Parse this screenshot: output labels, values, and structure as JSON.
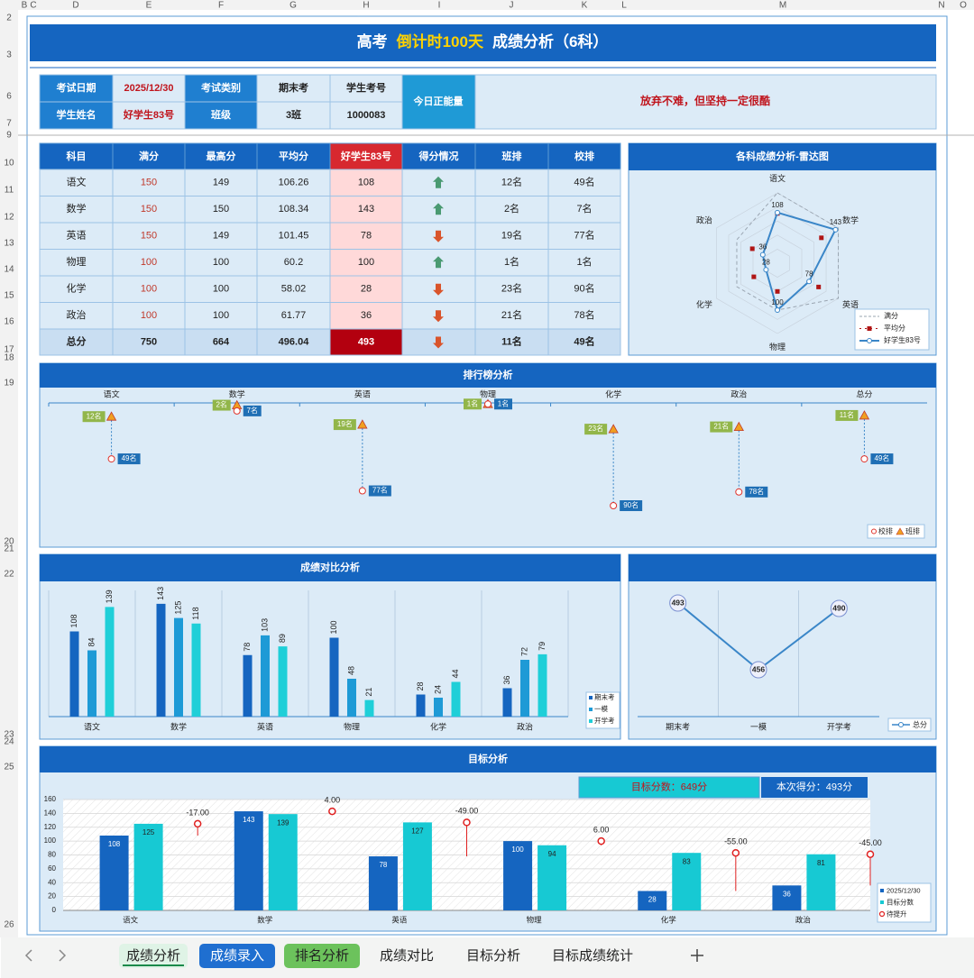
{
  "sheet": {
    "columns": [
      "B",
      "C",
      "D",
      "E",
      "F",
      "G",
      "H",
      "I",
      "J",
      "K",
      "L",
      "M",
      "N",
      "O"
    ],
    "rows": [
      "2",
      "3",
      "6",
      "7",
      "9",
      "10",
      "11",
      "12",
      "13",
      "14",
      "15",
      "16",
      "17",
      "18",
      "19",
      "20",
      "21",
      "22",
      "23",
      "24",
      "25",
      "26"
    ],
    "tabs": [
      "成绩分析",
      "成绩录入",
      "排名分析",
      "成绩对比",
      "目标分析",
      "目标成绩统计"
    ]
  },
  "header": {
    "title": [
      "高考",
      "倒计时100天",
      "成绩分析（6科）"
    ]
  },
  "info": {
    "rows": [
      [
        "考试日期",
        "2025/12/30",
        "考试类别",
        "期末考",
        "学生考号"
      ],
      [
        "学生姓名",
        "好学生83号",
        "班级",
        "3班",
        "1000083"
      ]
    ],
    "motto_label": "今日正能量",
    "motto": "放弃不难，但坚持一定很酷"
  },
  "score_table": {
    "header": [
      "科目",
      "满分",
      "最高分",
      "平均分",
      "好学生83号",
      "得分情况",
      "班排",
      "校排"
    ],
    "rows": [
      [
        "语文",
        150,
        149,
        106.26,
        108,
        "12名",
        "49名"
      ],
      [
        "数学",
        150,
        150,
        108.34,
        143,
        "2名",
        "7名"
      ],
      [
        "英语",
        150,
        149,
        101.45,
        78,
        "19名",
        "77名"
      ],
      [
        "物理",
        100,
        100,
        60.2,
        100,
        "1名",
        "1名"
      ],
      [
        "化学",
        100,
        100,
        58.02,
        28,
        "23名",
        "90名"
      ],
      [
        "政治",
        100,
        100,
        61.77,
        36,
        "21名",
        "78名"
      ],
      [
        "总分",
        750,
        664,
        496.04,
        493,
        "11名",
        "49名"
      ]
    ]
  },
  "chart_data": [
    {
      "type": "radar",
      "title": "各科成绩分析-雷达图",
      "categories": [
        "语文",
        "数学",
        "英语",
        "物理",
        "化学",
        "政治"
      ],
      "rlim": [
        0,
        150
      ],
      "grid": true,
      "series": [
        {
          "name": "满分",
          "color": "#9aa5b1",
          "values": [
            150,
            150,
            150,
            100,
            100,
            100
          ]
        },
        {
          "name": "平均分",
          "color": "#b01515",
          "values": [
            106.26,
            108.34,
            101.45,
            60.2,
            58.02,
            61.77
          ]
        },
        {
          "name": "好学生83号",
          "color": "#3a86c8",
          "values": [
            108,
            143,
            78,
            100,
            28,
            36
          ]
        }
      ]
    },
    {
      "type": "rank",
      "title": "排行榜分析",
      "categories": [
        "语文",
        "数学",
        "英语",
        "物理",
        "化学",
        "政治",
        "总分"
      ],
      "ylim": [
        0,
        120
      ],
      "reversed": true,
      "series": [
        {
          "name": "校排",
          "color": "#e0332b",
          "label_color": "#1f6fb5",
          "values": [
            49,
            7,
            77,
            1,
            90,
            78,
            49
          ],
          "value_labels": [
            "49名",
            "7名",
            "77名",
            "1名",
            "90名",
            "78名",
            "49名"
          ]
        },
        {
          "name": "班排",
          "color": "#f0a020",
          "label_color": "#92b64a",
          "values": [
            12,
            2,
            19,
            1,
            23,
            21,
            11
          ],
          "value_labels": [
            "12名",
            "2名",
            "19名",
            "1名",
            "23名",
            "21名",
            "11名"
          ]
        }
      ]
    },
    {
      "type": "bar",
      "title": "成绩对比分析",
      "categories": [
        "语文",
        "数学",
        "英语",
        "物理",
        "化学",
        "政治"
      ],
      "ylim": [
        0,
        160
      ],
      "series": [
        {
          "name": "期末考",
          "color": "#1565c0",
          "values": [
            108,
            143,
            78,
            100,
            28,
            36
          ]
        },
        {
          "name": "一模",
          "color": "#1e9ad6",
          "values": [
            84,
            125,
            103,
            48,
            24,
            72
          ]
        },
        {
          "name": "开学考",
          "color": "#1fcfd8",
          "values": [
            139,
            118,
            89,
            21,
            44,
            79
          ]
        }
      ]
    },
    {
      "type": "line",
      "categories": [
        "期末考",
        "一模",
        "开学考"
      ],
      "ylim": [
        430,
        500
      ],
      "series": [
        {
          "name": "总分",
          "color": "#3a86c8",
          "values": [
            493,
            456,
            490
          ]
        }
      ]
    },
    {
      "type": "target",
      "title": "目标分析",
      "target_label": "目标分数：649分",
      "score_label": "本次得分：493分",
      "categories": [
        "语文",
        "数学",
        "英语",
        "物理",
        "化学",
        "政治"
      ],
      "ylim": [
        0,
        160
      ],
      "yticks": [
        0,
        20,
        40,
        60,
        80,
        100,
        120,
        140,
        160
      ],
      "grid": true,
      "series": [
        {
          "name": "2025/12/30",
          "color": "#1565c0",
          "values": [
            108,
            143,
            78,
            100,
            28,
            36
          ]
        },
        {
          "name": "目标分数",
          "color": "#17c9d3",
          "values": [
            125,
            139,
            127,
            94,
            83,
            81
          ]
        },
        {
          "name": "待提升",
          "color": "#e02020",
          "values": [
            -17,
            4,
            -49,
            6,
            -55,
            -45
          ],
          "value_labels": [
            "-17.00",
            "4.00",
            "-49.00",
            "6.00",
            "-55.00",
            "-45.00"
          ]
        }
      ]
    }
  ]
}
